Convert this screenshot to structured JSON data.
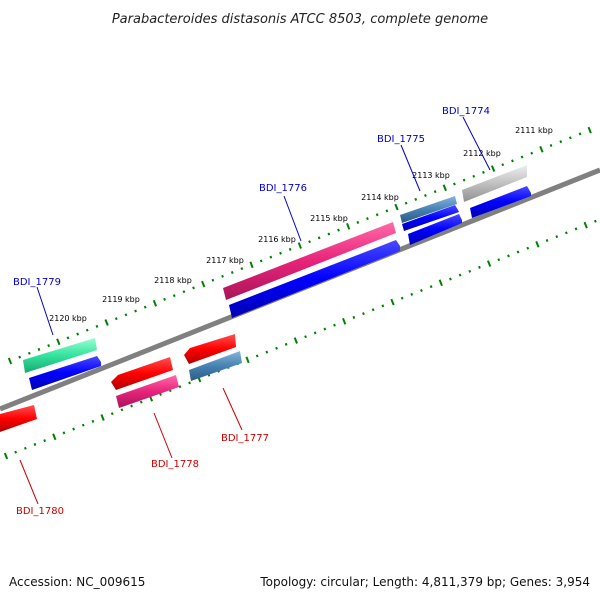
{
  "title": "Parabacteroides distasonis ATCC 8503, complete genome",
  "footer": {
    "accession": "Accession: NC_009615",
    "topology": "Topology: circular; Length: 4,811,379 bp; Genes: 3,954"
  },
  "ticks": [
    "2111 kbp",
    "2112 kbp",
    "2113 kbp",
    "2114 kbp",
    "2115 kbp",
    "2116 kbp",
    "2117 kbp",
    "2118 kbp",
    "2119 kbp",
    "2120 kbp"
  ],
  "genes_forward": [
    {
      "label": "BDI_1774",
      "color": "#c0c0c0"
    },
    {
      "label": "BDI_1775",
      "color": "#4682b4"
    },
    {
      "label": "BDI_1776",
      "color": "#e8237a"
    },
    {
      "label": "BDI_1779",
      "color": "#33e39e"
    }
  ],
  "genes_reverse": [
    {
      "label": "BDI_1777",
      "color": "#ff0000"
    },
    {
      "label": "BDI_1778",
      "color": "#ff0000"
    },
    {
      "label": "BDI_1780",
      "color": "#ff0000"
    }
  ],
  "colors": {
    "backbone": "#808080",
    "tick_dots": "#008000",
    "forward_label": "#0000cc",
    "reverse_label": "#cc0000",
    "cds": "#0000ff"
  }
}
